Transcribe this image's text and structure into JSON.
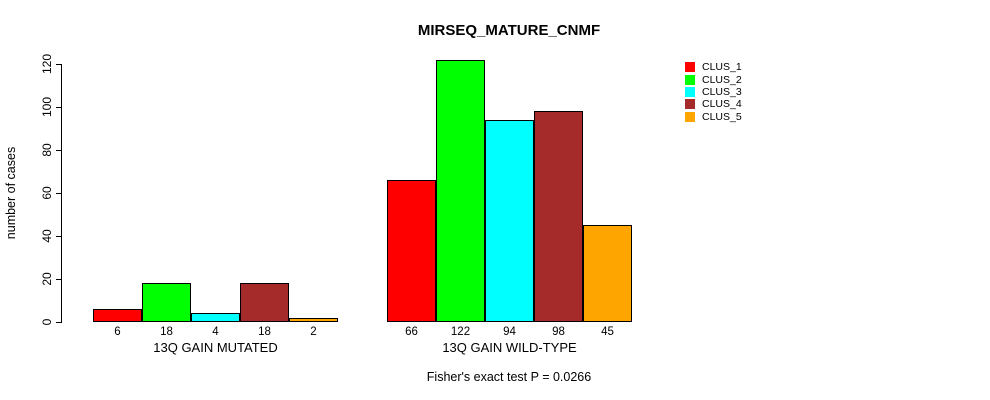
{
  "title": "MIRSEQ_MATURE_CNMF",
  "annotation": "Fisher's exact test P = 0.0266",
  "chart_data": {
    "type": "bar",
    "title": "MIRSEQ_MATURE_CNMF",
    "xlabel": "",
    "ylabel": "number of cases",
    "ylim": [
      0,
      120
    ],
    "yticks": [
      0,
      20,
      40,
      60,
      80,
      100,
      120
    ],
    "grid": false,
    "legend_position": "right",
    "bar_border_color": "#000000",
    "background_color": "#ffffff",
    "categories": [
      "13Q GAIN MUTATED",
      "13Q GAIN WILD-TYPE"
    ],
    "series": [
      {
        "name": "CLUS_1",
        "color": "#ff0000",
        "values": [
          6,
          66
        ]
      },
      {
        "name": "CLUS_2",
        "color": "#00ff00",
        "values": [
          18,
          122
        ]
      },
      {
        "name": "CLUS_3",
        "color": "#00ffff",
        "values": [
          4,
          94
        ]
      },
      {
        "name": "CLUS_4",
        "color": "#a52a2a",
        "values": [
          18,
          98
        ]
      },
      {
        "name": "CLUS_5",
        "color": "#ffa500",
        "values": [
          2,
          45
        ]
      }
    ],
    "bar_value_labels_shown": true,
    "annotation": "Fisher's exact test P = 0.0266"
  }
}
